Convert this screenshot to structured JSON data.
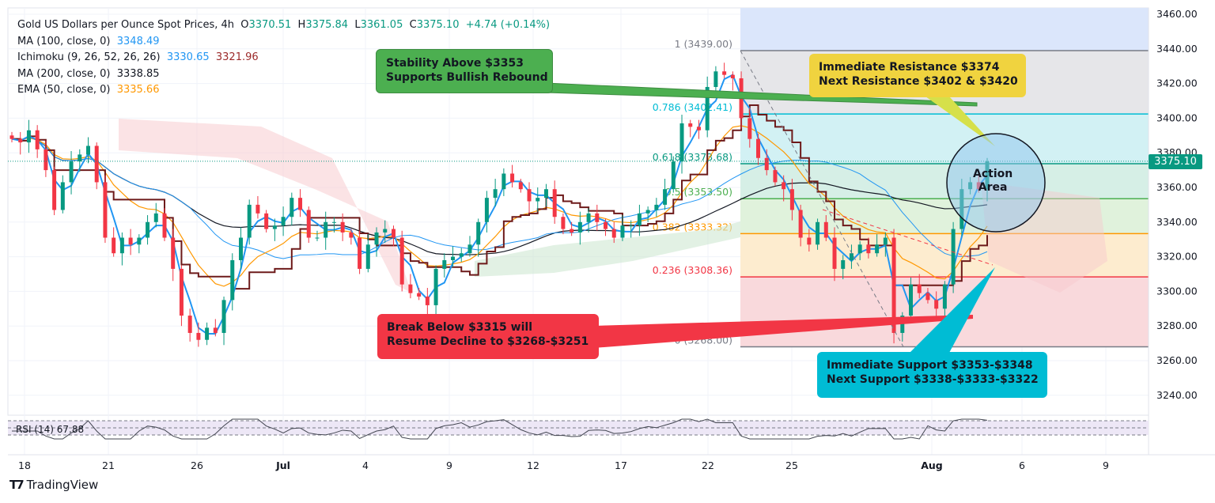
{
  "header": {
    "title": "Gold US Dollars per Ounce Spot Prices, 4h",
    "o_label": "O",
    "open": "3370.51",
    "h_label": "H",
    "high": "3375.84",
    "l_label": "L",
    "low": "3361.05",
    "c_label": "C",
    "close": "3375.10",
    "change": "+4.74 (+0.14%)"
  },
  "indicators": [
    {
      "name": "MA (100, close, 0)",
      "value": "3348.49",
      "color": "#2196f3"
    },
    {
      "name": "Ichimoku (9, 26, 52, 26, 26)",
      "value": "3330.65",
      "value2": "3321.96",
      "color": "#2196f3",
      "color2": "#9c2a2a"
    },
    {
      "name": "MA (200, close, 0)",
      "value": "3338.85",
      "color": "#131722"
    },
    {
      "name": "EMA (50, close, 0)",
      "value": "3335.66",
      "color": "#ff9800"
    }
  ],
  "rsi": {
    "label": "RSI (14)",
    "value": "67.88"
  },
  "chart_data": {
    "type": "candlestick",
    "title": "Gold US Dollars per Ounce Spot Prices, 4h",
    "ylim": [
      3230,
      3465
    ],
    "y_ticks": [
      "3460.00",
      "3440.00",
      "3420.00",
      "3400.00",
      "3380.00",
      "3360.00",
      "3340.00",
      "3320.00",
      "3300.00",
      "3280.00",
      "3260.00",
      "3240.00"
    ],
    "x_ticks": [
      "18",
      "21",
      "26",
      "Jul",
      "4",
      "9",
      "12",
      "17",
      "22",
      "25",
      "Aug",
      "6",
      "9"
    ],
    "last_price": "3375.10",
    "close": [
      3388,
      3386,
      3393,
      3382,
      3370,
      3347,
      3363,
      3375,
      3379,
      3384,
      3363,
      3331,
      3322,
      3331,
      3327,
      3331,
      3340,
      3345,
      3331,
      3313,
      3286,
      3276,
      3272,
      3279,
      3276,
      3295,
      3318,
      3331,
      3350,
      3345,
      3336,
      3338,
      3343,
      3354,
      3347,
      3331,
      3331,
      3340,
      3340,
      3334,
      3331,
      3313,
      3327,
      3334,
      3336,
      3331,
      3304,
      3299,
      3297,
      3292,
      3313,
      3318,
      3320,
      3322,
      3327,
      3340,
      3354,
      3359,
      3368,
      3363,
      3359,
      3352,
      3354,
      3359,
      3343,
      3336,
      3334,
      3340,
      3345,
      3340,
      3336,
      3331,
      3338,
      3338,
      3345,
      3347,
      3350,
      3359,
      3375,
      3397,
      3395,
      3393,
      3418,
      3427,
      3425,
      3423,
      3400,
      3388,
      3377,
      3370,
      3363,
      3359,
      3347,
      3331,
      3327,
      3340,
      3331,
      3313,
      3318,
      3322,
      3327,
      3322,
      3327,
      3331,
      3276,
      3286,
      3304,
      3299,
      3295,
      3290,
      3304,
      3336,
      3359,
      3363,
      3359,
      3375
    ],
    "fibonacci": [
      {
        "ratio": "1",
        "price": "3439.00",
        "color": "#787b86"
      },
      {
        "ratio": "0.786",
        "price": "3402.41",
        "color": "#00bcd4"
      },
      {
        "ratio": "0.618",
        "price": "3373.68",
        "color": "#089981"
      },
      {
        "ratio": "0.5",
        "price": "3353.50",
        "color": "#4caf50"
      },
      {
        "ratio": "0.382",
        "price": "3333.32",
        "color": "#ff9800"
      },
      {
        "ratio": "0.236",
        "price": "3308.36",
        "color": "#f23645"
      },
      {
        "ratio": "0",
        "price": "3268.00",
        "color": "#787b86"
      }
    ],
    "annotations": {
      "green": "Stability Above $3353\nSupports Bullish Rebound",
      "yellow": "Immediate Resistance $3374\nNext Resistance $3402 & $3420",
      "red": "Break Below $3315 will\nResume Decline to $3268-$3251",
      "cyan": "Immediate Support $3353-$3348\nNext Support $3338-$3333-$3322",
      "circle": "Action\nArea"
    },
    "colors": {
      "up": "#089981",
      "down": "#f23645"
    }
  },
  "brand": "TradingView"
}
